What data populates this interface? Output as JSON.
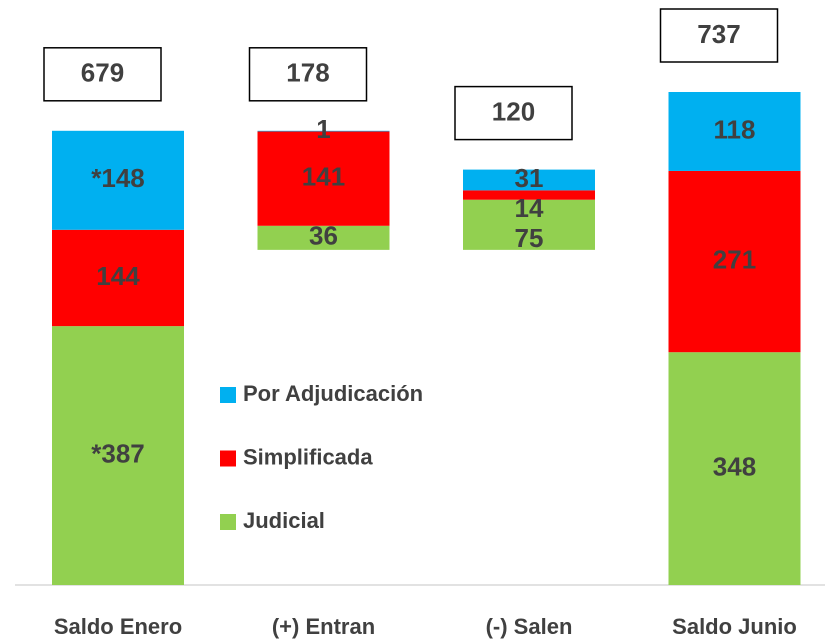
{
  "chart_data": {
    "type": "waterfall",
    "categories": [
      "Saldo Enero",
      "(+) Entran",
      "(-) Salen",
      "Saldo Junio"
    ],
    "totals": [
      679,
      178,
      120,
      737
    ],
    "series": [
      {
        "name": "Judicial",
        "color": "#92d050",
        "values": [
          387,
          36,
          75,
          348
        ],
        "value_labels": [
          "*387",
          "36",
          "75",
          "348"
        ]
      },
      {
        "name": "Simplificada",
        "color": "#ff0000",
        "values": [
          144,
          141,
          14,
          271
        ]
      },
      {
        "name": "Por Adjudicación",
        "color": "#00b0f0",
        "values": [
          148,
          1,
          31,
          118
        ],
        "value_labels": [
          "*148",
          "1",
          "31",
          "118"
        ]
      }
    ],
    "legend": "center"
  }
}
